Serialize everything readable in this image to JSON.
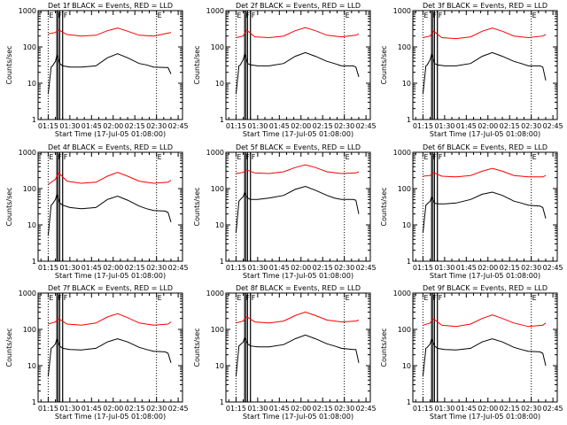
{
  "shared": {
    "title_suffix": "BLACK = Events, RED = LLD",
    "xlabel": "Start Time (17-Jul-05 01:08:00)",
    "ylabel": "Counts/sec",
    "x_ticks": [
      "01:15",
      "01:30",
      "01:45",
      "02:00",
      "02:15",
      "02:30",
      "02:45"
    ],
    "y_ticks": [
      "1",
      "10",
      "100",
      "1000"
    ],
    "flag_labels": [
      "E",
      "F",
      "F",
      "E"
    ],
    "colors": {
      "events": "#000000",
      "lld": "#ff0000",
      "marker_lines": "#000000"
    }
  },
  "chart_data": [
    {
      "type": "line",
      "title": "Det 1f BLACK = Events, RED = LLD",
      "xlabel": "Start Time (17-Jul-05 01:08:00)",
      "ylabel": "Counts/sec",
      "x_unit": "minutes since 01:08:00",
      "xlim": [
        0,
        100
      ],
      "ylim": [
        1,
        1000
      ],
      "yscale": "log",
      "vertical_markers": [
        {
          "label": "E",
          "x": 7
        },
        {
          "label": "F",
          "x": 13
        },
        {
          "label": "F",
          "x": 17
        },
        {
          "label": "E",
          "x": 82
        }
      ],
      "series": [
        {
          "name": "Events",
          "color": "#000000",
          "x": [
            7,
            9,
            10,
            12,
            13,
            14,
            15,
            17,
            22,
            30,
            40,
            48,
            55,
            62,
            70,
            75,
            80,
            88,
            90,
            92
          ],
          "y": [
            5,
            28,
            30,
            40,
            60,
            50,
            35,
            30,
            28,
            28,
            30,
            50,
            65,
            50,
            35,
            32,
            28,
            27,
            27,
            18
          ]
        },
        {
          "name": "LLD",
          "color": "#ff0000",
          "x": [
            7,
            12,
            14,
            20,
            30,
            40,
            48,
            55,
            62,
            70,
            80,
            90,
            92
          ],
          "y": [
            230,
            250,
            300,
            220,
            200,
            210,
            280,
            330,
            270,
            210,
            200,
            240,
            250
          ]
        }
      ]
    },
    {
      "type": "line",
      "title": "Det 2f BLACK = Events, RED = LLD",
      "xlabel": "Start Time (17-Jul-05 01:08:00)",
      "ylabel": "Counts/sec",
      "x_unit": "minutes since 01:08:00",
      "xlim": [
        0,
        100
      ],
      "ylim": [
        1,
        1000
      ],
      "yscale": "log",
      "vertical_markers": [
        {
          "label": "E",
          "x": 7
        },
        {
          "label": "F",
          "x": 13
        },
        {
          "label": "F",
          "x": 17
        },
        {
          "label": "E",
          "x": 82
        }
      ],
      "series": [
        {
          "name": "Events",
          "color": "#000000",
          "x": [
            7,
            9,
            10,
            12,
            13,
            14,
            15,
            17,
            22,
            30,
            40,
            48,
            55,
            62,
            70,
            75,
            80,
            88,
            90,
            92
          ],
          "y": [
            5,
            30,
            32,
            45,
            65,
            50,
            35,
            32,
            30,
            30,
            35,
            55,
            70,
            55,
            40,
            35,
            30,
            30,
            28,
            15
          ]
        },
        {
          "name": "LLD",
          "color": "#ff0000",
          "x": [
            7,
            12,
            14,
            20,
            30,
            40,
            48,
            55,
            62,
            70,
            80,
            90,
            92
          ],
          "y": [
            180,
            200,
            300,
            190,
            180,
            200,
            280,
            340,
            280,
            210,
            190,
            210,
            230
          ]
        }
      ]
    },
    {
      "type": "line",
      "title": "Det 3f BLACK = Events, RED = LLD",
      "xlabel": "Start Time (17-Jul-05 01:08:00)",
      "ylabel": "Counts/sec",
      "x_unit": "minutes since 01:08:00",
      "xlim": [
        0,
        100
      ],
      "ylim": [
        1,
        1000
      ],
      "yscale": "log",
      "vertical_markers": [
        {
          "label": "E",
          "x": 7
        },
        {
          "label": "F",
          "x": 13
        },
        {
          "label": "F",
          "x": 17
        },
        {
          "label": "E",
          "x": 82
        }
      ],
      "series": [
        {
          "name": "Events",
          "color": "#000000",
          "x": [
            7,
            9,
            10,
            12,
            13,
            14,
            15,
            17,
            22,
            30,
            40,
            48,
            55,
            62,
            70,
            75,
            80,
            88,
            90,
            92
          ],
          "y": [
            5,
            30,
            32,
            45,
            65,
            50,
            35,
            32,
            30,
            30,
            35,
            55,
            70,
            55,
            40,
            35,
            30,
            30,
            28,
            12
          ]
        },
        {
          "name": "LLD",
          "color": "#ff0000",
          "x": [
            7,
            12,
            14,
            20,
            30,
            40,
            48,
            55,
            62,
            70,
            80,
            90,
            92
          ],
          "y": [
            180,
            200,
            280,
            180,
            170,
            190,
            270,
            330,
            270,
            200,
            180,
            200,
            220
          ]
        }
      ]
    },
    {
      "type": "line",
      "title": "Det 4f BLACK = Events, RED = LLD",
      "xlabel": "Start Time (17-Jul-05 01:08:00)",
      "ylabel": "Counts/sec",
      "x_unit": "minutes since 01:08:00",
      "xlim": [
        0,
        100
      ],
      "ylim": [
        1,
        1000
      ],
      "yscale": "log",
      "vertical_markers": [
        {
          "label": "E",
          "x": 7
        },
        {
          "label": "F",
          "x": 13
        },
        {
          "label": "F",
          "x": 17
        },
        {
          "label": "E",
          "x": 82
        }
      ],
      "series": [
        {
          "name": "Events",
          "color": "#000000",
          "x": [
            7,
            9,
            10,
            12,
            13,
            14,
            15,
            17,
            22,
            30,
            40,
            48,
            55,
            62,
            70,
            75,
            80,
            88,
            90,
            92
          ],
          "y": [
            5,
            35,
            38,
            50,
            70,
            55,
            40,
            35,
            30,
            28,
            30,
            50,
            62,
            48,
            33,
            28,
            25,
            24,
            22,
            12
          ]
        },
        {
          "name": "LLD",
          "color": "#ff0000",
          "x": [
            7,
            12,
            14,
            20,
            30,
            40,
            48,
            55,
            62,
            70,
            80,
            90,
            92
          ],
          "y": [
            130,
            180,
            280,
            160,
            140,
            150,
            220,
            280,
            220,
            160,
            140,
            150,
            170
          ]
        }
      ]
    },
    {
      "type": "line",
      "title": "Det 5f BLACK = Events, RED = LLD",
      "xlabel": "Start Time (17-Jul-05 01:08:00)",
      "ylabel": "Counts/sec",
      "x_unit": "minutes since 01:08:00",
      "xlim": [
        0,
        100
      ],
      "ylim": [
        1,
        1000
      ],
      "yscale": "log",
      "vertical_markers": [
        {
          "label": "E",
          "x": 7
        },
        {
          "label": "F",
          "x": 13
        },
        {
          "label": "F",
          "x": 17
        },
        {
          "label": "E",
          "x": 82
        }
      ],
      "series": [
        {
          "name": "Events",
          "color": "#000000",
          "x": [
            7,
            9,
            10,
            12,
            13,
            14,
            15,
            17,
            22,
            30,
            40,
            48,
            55,
            62,
            70,
            75,
            80,
            88,
            90,
            92
          ],
          "y": [
            6,
            45,
            50,
            60,
            80,
            65,
            55,
            50,
            50,
            55,
            65,
            95,
            115,
            90,
            65,
            55,
            50,
            50,
            48,
            20
          ]
        },
        {
          "name": "LLD",
          "color": "#ff0000",
          "x": [
            7,
            12,
            14,
            20,
            30,
            40,
            48,
            55,
            62,
            70,
            80,
            90,
            92
          ],
          "y": [
            260,
            280,
            330,
            270,
            260,
            290,
            380,
            450,
            380,
            290,
            260,
            270,
            290
          ]
        }
      ]
    },
    {
      "type": "line",
      "title": "Det 6f BLACK = Events, RED = LLD",
      "xlabel": "Start Time (17-Jul-05 01:08:00)",
      "ylabel": "Counts/sec",
      "x_unit": "minutes since 01:08:00",
      "xlim": [
        0,
        100
      ],
      "ylim": [
        1,
        1000
      ],
      "yscale": "log",
      "vertical_markers": [
        {
          "label": "E",
          "x": 7
        },
        {
          "label": "F",
          "x": 13
        },
        {
          "label": "F",
          "x": 17
        },
        {
          "label": "E",
          "x": 82
        }
      ],
      "series": [
        {
          "name": "Events",
          "color": "#000000",
          "x": [
            7,
            9,
            10,
            12,
            13,
            14,
            15,
            17,
            22,
            30,
            40,
            48,
            55,
            62,
            70,
            75,
            80,
            88,
            90,
            92
          ],
          "y": [
            6,
            35,
            38,
            45,
            60,
            50,
            40,
            38,
            38,
            40,
            50,
            70,
            80,
            65,
            45,
            40,
            35,
            33,
            30,
            15
          ]
        },
        {
          "name": "LLD",
          "color": "#ff0000",
          "x": [
            7,
            12,
            14,
            20,
            30,
            40,
            48,
            55,
            62,
            70,
            80,
            90,
            92
          ],
          "y": [
            220,
            230,
            280,
            220,
            210,
            230,
            300,
            360,
            300,
            230,
            210,
            210,
            230
          ]
        }
      ]
    },
    {
      "type": "line",
      "title": "Det 7f BLACK = Events, RED = LLD",
      "xlabel": "Start Time (17-Jul-05 01:08:00)",
      "ylabel": "Counts/sec",
      "x_unit": "minutes since 01:08:00",
      "xlim": [
        0,
        100
      ],
      "ylim": [
        1,
        1000
      ],
      "yscale": "log",
      "vertical_markers": [
        {
          "label": "E",
          "x": 7
        },
        {
          "label": "F",
          "x": 13
        },
        {
          "label": "F",
          "x": 17
        },
        {
          "label": "E",
          "x": 82
        }
      ],
      "series": [
        {
          "name": "Events",
          "color": "#000000",
          "x": [
            7,
            9,
            10,
            12,
            13,
            14,
            15,
            17,
            22,
            30,
            40,
            48,
            55,
            62,
            70,
            75,
            80,
            88,
            90,
            92
          ],
          "y": [
            5,
            30,
            32,
            40,
            55,
            45,
            35,
            30,
            28,
            27,
            30,
            45,
            55,
            45,
            32,
            28,
            25,
            24,
            22,
            12
          ]
        },
        {
          "name": "LLD",
          "color": "#ff0000",
          "x": [
            7,
            12,
            14,
            20,
            30,
            40,
            48,
            55,
            62,
            70,
            80,
            90,
            92
          ],
          "y": [
            140,
            160,
            200,
            140,
            130,
            150,
            220,
            270,
            210,
            150,
            130,
            140,
            160
          ]
        }
      ]
    },
    {
      "type": "line",
      "title": "Det 8f BLACK = Events, RED = LLD",
      "xlabel": "Start Time (17-Jul-05 01:08:00)",
      "ylabel": "Counts/sec",
      "x_unit": "minutes since 01:08:00",
      "xlim": [
        0,
        100
      ],
      "ylim": [
        1,
        1000
      ],
      "yscale": "log",
      "vertical_markers": [
        {
          "label": "E",
          "x": 7
        },
        {
          "label": "F",
          "x": 13
        },
        {
          "label": "F",
          "x": 17
        },
        {
          "label": "E",
          "x": 82
        }
      ],
      "series": [
        {
          "name": "Events",
          "color": "#000000",
          "x": [
            7,
            9,
            10,
            12,
            13,
            14,
            15,
            17,
            22,
            30,
            40,
            48,
            55,
            62,
            70,
            75,
            80,
            88,
            90,
            92
          ],
          "y": [
            5,
            35,
            38,
            45,
            60,
            50,
            40,
            35,
            33,
            33,
            38,
            55,
            70,
            55,
            40,
            35,
            30,
            28,
            28,
            12
          ]
        },
        {
          "name": "LLD",
          "color": "#ff0000",
          "x": [
            7,
            12,
            14,
            20,
            30,
            40,
            48,
            55,
            62,
            70,
            80,
            90,
            92
          ],
          "y": [
            150,
            170,
            230,
            160,
            150,
            170,
            240,
            300,
            240,
            180,
            160,
            170,
            180
          ]
        }
      ]
    },
    {
      "type": "line",
      "title": "Det 9f BLACK = Events, RED = LLD",
      "xlabel": "Start Time (17-Jul-05 01:08:00)",
      "ylabel": "Counts/sec",
      "x_unit": "minutes since 01:08:00",
      "xlim": [
        0,
        100
      ],
      "ylim": [
        1,
        1000
      ],
      "yscale": "log",
      "vertical_markers": [
        {
          "label": "E",
          "x": 7
        },
        {
          "label": "F",
          "x": 13
        },
        {
          "label": "F",
          "x": 17
        },
        {
          "label": "E",
          "x": 82
        }
      ],
      "series": [
        {
          "name": "Events",
          "color": "#000000",
          "x": [
            7,
            9,
            10,
            12,
            13,
            14,
            15,
            17,
            22,
            30,
            40,
            48,
            55,
            62,
            70,
            75,
            80,
            88,
            90,
            92
          ],
          "y": [
            5,
            30,
            32,
            40,
            55,
            45,
            35,
            30,
            28,
            27,
            30,
            45,
            55,
            45,
            32,
            28,
            25,
            24,
            22,
            10
          ]
        },
        {
          "name": "LLD",
          "color": "#ff0000",
          "x": [
            7,
            12,
            14,
            20,
            30,
            40,
            48,
            55,
            62,
            70,
            80,
            90,
            92
          ],
          "y": [
            130,
            150,
            200,
            130,
            120,
            140,
            200,
            250,
            200,
            150,
            120,
            130,
            150
          ]
        }
      ]
    }
  ]
}
